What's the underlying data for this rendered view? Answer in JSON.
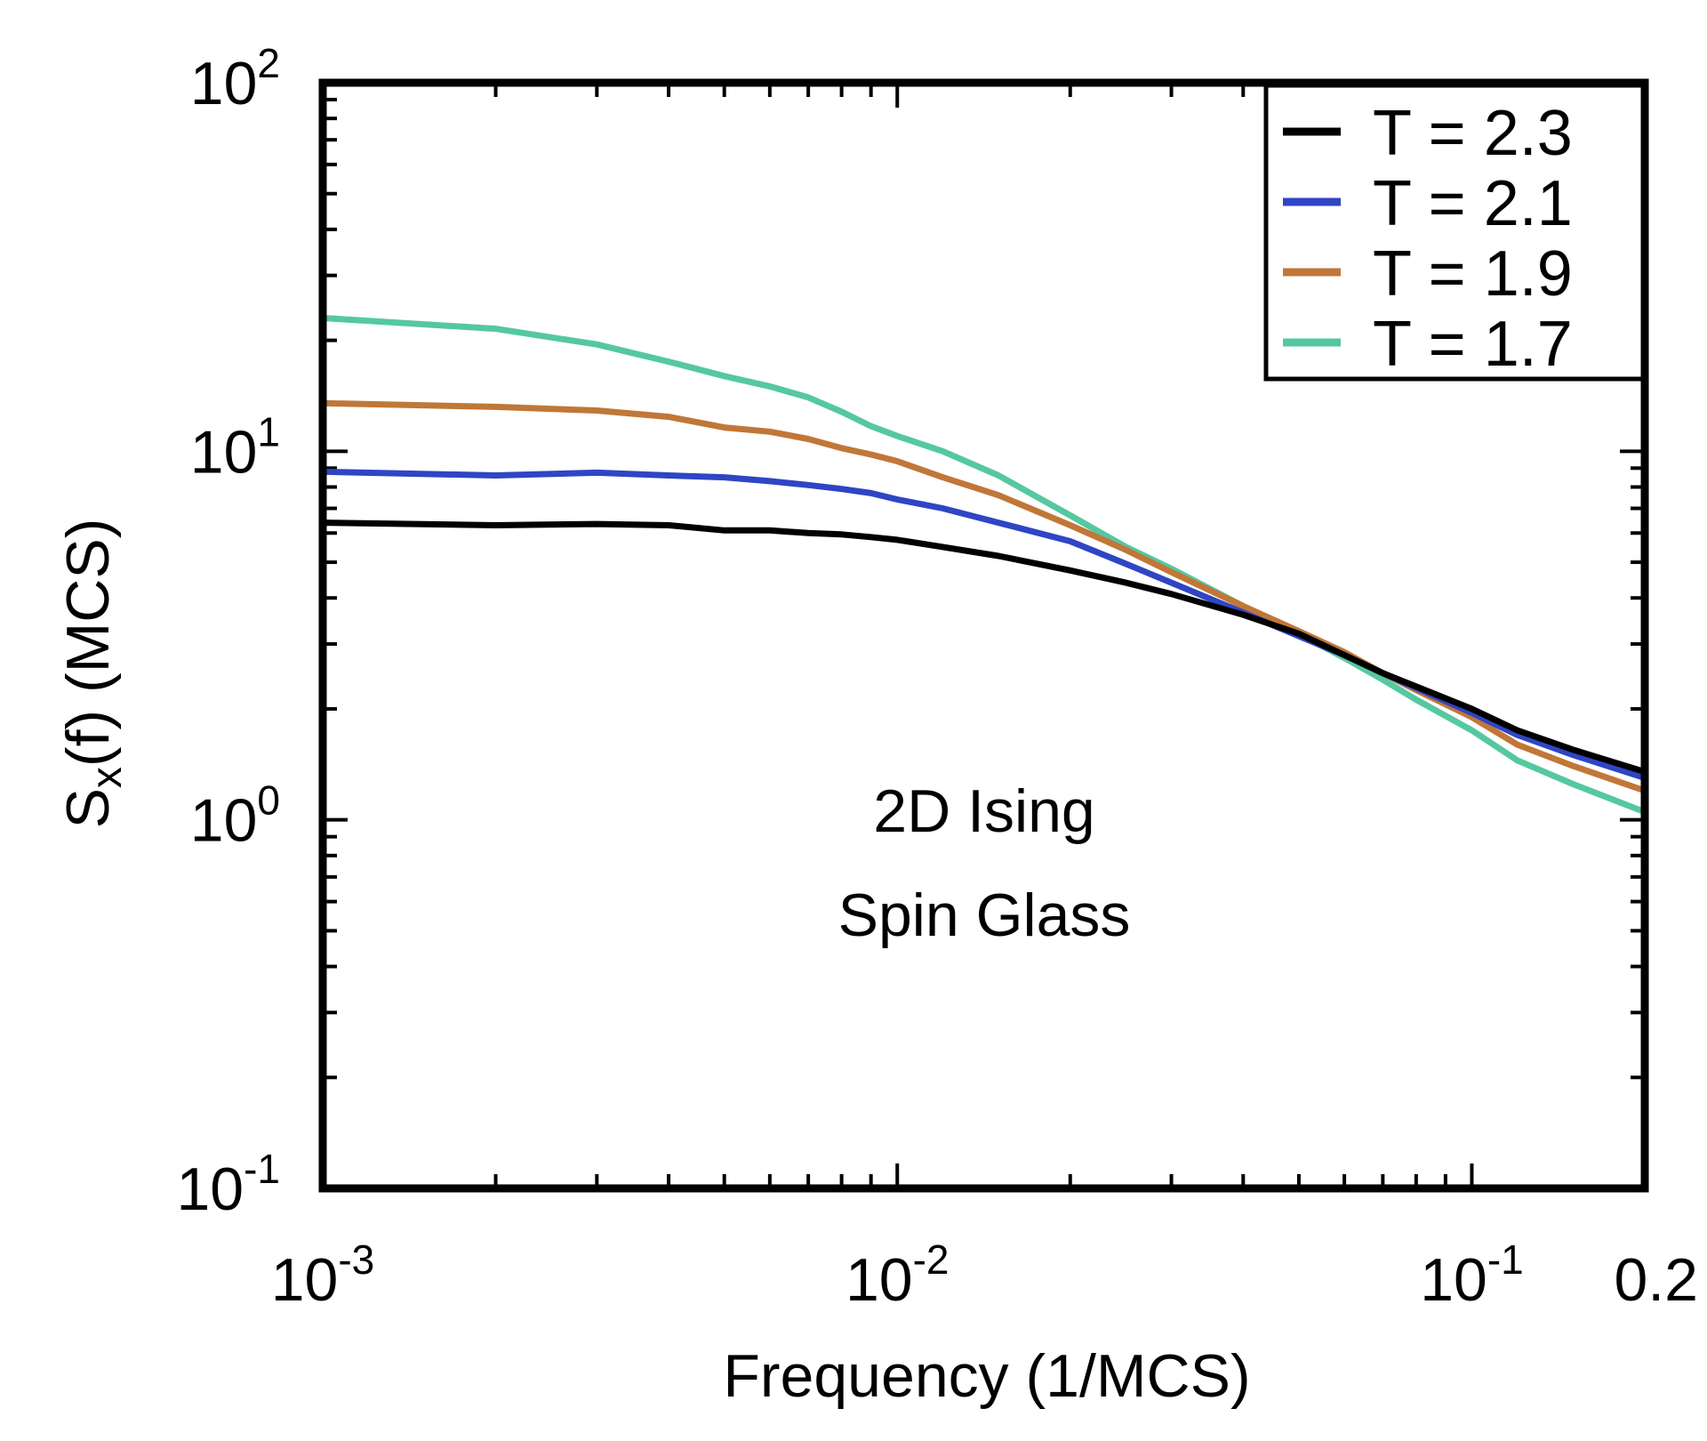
{
  "chart_data": {
    "type": "line",
    "xscale": "log",
    "yscale": "log",
    "xlim": [
      0.001,
      0.2
    ],
    "ylim": [
      0.1,
      100
    ],
    "xlabel": "Frequency (1/MCS)",
    "ylabel": {
      "main": "S",
      "subscript": "x",
      "rest": "(f) (MCS)"
    },
    "x_ticks": [
      {
        "value": 0.001,
        "base": "10",
        "exp": "-3"
      },
      {
        "value": 0.01,
        "base": "10",
        "exp": "-2"
      },
      {
        "value": 0.1,
        "base": "10",
        "exp": "-1"
      },
      {
        "value": 0.2,
        "base": "0.2",
        "exp": ""
      }
    ],
    "y_ticks": [
      {
        "value": 0.1,
        "base": "10",
        "exp": "-1"
      },
      {
        "value": 1,
        "base": "10",
        "exp": "0"
      },
      {
        "value": 10,
        "base": "10",
        "exp": "1"
      },
      {
        "value": 100,
        "base": "10",
        "exp": "2"
      }
    ],
    "annotation": [
      "2D Ising",
      "Spin Glass"
    ],
    "legend_position": "top-right",
    "x": [
      0.001,
      0.002,
      0.003,
      0.004,
      0.005,
      0.006,
      0.007,
      0.008,
      0.009,
      0.01,
      0.012,
      0.015,
      0.02,
      0.025,
      0.03,
      0.04,
      0.05,
      0.06,
      0.07,
      0.08,
      0.1,
      0.12,
      0.15,
      0.2
    ],
    "series": [
      {
        "name": "T = 2.3",
        "color": "#000000",
        "values": [
          6.4,
          6.3,
          6.35,
          6.3,
          6.1,
          6.1,
          6.0,
          5.95,
          5.85,
          5.75,
          5.5,
          5.2,
          4.75,
          4.4,
          4.1,
          3.6,
          3.2,
          2.8,
          2.5,
          2.3,
          2.0,
          1.75,
          1.55,
          1.35
        ]
      },
      {
        "name": "T = 2.1",
        "color": "#2f45c5",
        "values": [
          8.8,
          8.6,
          8.75,
          8.6,
          8.5,
          8.3,
          8.1,
          7.9,
          7.7,
          7.4,
          7.0,
          6.4,
          5.7,
          4.95,
          4.4,
          3.65,
          3.15,
          2.8,
          2.5,
          2.28,
          1.95,
          1.7,
          1.5,
          1.3
        ]
      },
      {
        "name": "T = 1.9",
        "color": "#c07738",
        "values": [
          13.5,
          13.2,
          12.9,
          12.4,
          11.6,
          11.3,
          10.8,
          10.2,
          9.8,
          9.4,
          8.5,
          7.6,
          6.3,
          5.4,
          4.7,
          3.8,
          3.25,
          2.85,
          2.5,
          2.25,
          1.9,
          1.6,
          1.4,
          1.2
        ]
      },
      {
        "name": "T = 1.7",
        "color": "#55c8a0",
        "values": [
          23.0,
          21.5,
          19.5,
          17.5,
          16.0,
          15.0,
          14.0,
          12.8,
          11.7,
          11.0,
          10.0,
          8.6,
          6.7,
          5.5,
          4.8,
          3.8,
          3.2,
          2.75,
          2.4,
          2.12,
          1.75,
          1.45,
          1.25,
          1.05
        ]
      }
    ]
  }
}
